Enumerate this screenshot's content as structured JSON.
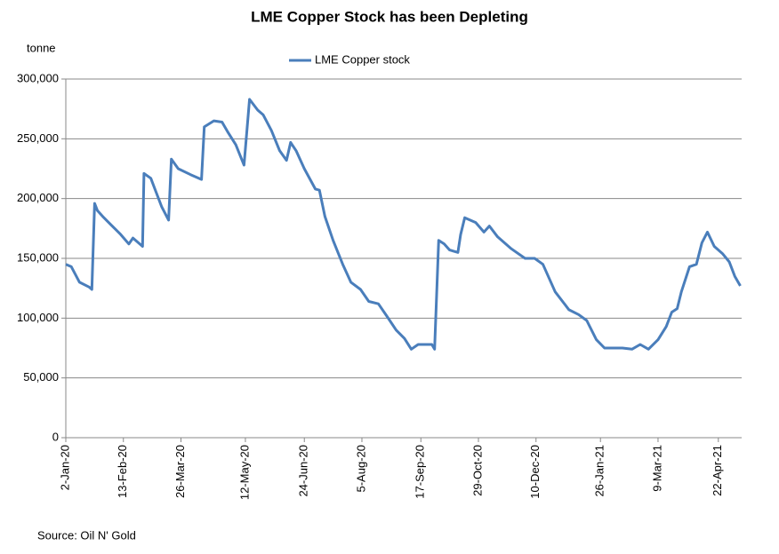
{
  "chart_data": {
    "type": "line",
    "title": "LME Copper Stock has been Depleting",
    "y_label": "tonne",
    "source": "Source: Oil N' Gold",
    "legend": "top",
    "grid": true,
    "x": [
      "2020-01-02",
      "2020-01-06",
      "2020-01-12",
      "2020-01-19",
      "2020-01-21",
      "2020-01-23",
      "2020-01-25",
      "2020-01-29",
      "2020-02-04",
      "2020-02-11",
      "2020-02-17",
      "2020-02-20",
      "2020-02-27",
      "2020-02-28",
      "2020-03-04",
      "2020-03-08",
      "2020-03-12",
      "2020-03-17",
      "2020-03-19",
      "2020-03-24",
      "2020-04-02",
      "2020-04-10",
      "2020-04-12",
      "2020-04-19",
      "2020-04-25",
      "2020-04-29",
      "2020-05-05",
      "2020-05-11",
      "2020-05-15",
      "2020-05-21",
      "2020-05-25",
      "2020-05-31",
      "2020-06-06",
      "2020-06-11",
      "2020-06-14",
      "2020-06-18",
      "2020-06-24",
      "2020-07-02",
      "2020-07-05",
      "2020-07-09",
      "2020-07-15",
      "2020-07-22",
      "2020-07-28",
      "2020-08-04",
      "2020-08-10",
      "2020-08-17",
      "2020-08-23",
      "2020-08-30",
      "2020-09-05",
      "2020-09-10",
      "2020-09-15",
      "2020-09-25",
      "2020-09-27",
      "2020-09-30",
      "2020-10-04",
      "2020-10-08",
      "2020-10-14",
      "2020-10-16",
      "2020-10-19",
      "2020-10-27",
      "2020-11-02",
      "2020-11-06",
      "2020-11-12",
      "2020-11-22",
      "2020-12-02",
      "2020-12-09",
      "2020-12-15",
      "2020-12-24",
      "2021-01-03",
      "2021-01-10",
      "2021-01-16",
      "2021-01-23",
      "2021-01-29",
      "2021-02-11",
      "2021-02-18",
      "2021-02-24",
      "2021-03-02",
      "2021-03-09",
      "2021-03-15",
      "2021-03-19",
      "2021-03-23",
      "2021-03-26",
      "2021-04-01",
      "2021-04-06",
      "2021-04-10",
      "2021-04-14",
      "2021-04-19",
      "2021-04-25",
      "2021-04-30",
      "2021-05-04",
      "2021-05-08"
    ],
    "series": [
      {
        "name": "LME Copper stock",
        "color": "#4a7ebb",
        "values": [
          145000,
          143000,
          130000,
          126000,
          124000,
          196000,
          190000,
          185000,
          178000,
          170000,
          162000,
          167000,
          160000,
          221000,
          217000,
          205000,
          193000,
          182000,
          233000,
          225000,
          220000,
          216000,
          260000,
          265000,
          264000,
          256000,
          245000,
          228000,
          283000,
          274000,
          270000,
          257000,
          240000,
          232000,
          247000,
          240000,
          225000,
          208000,
          207000,
          185000,
          165000,
          145000,
          130000,
          124000,
          114000,
          112000,
          102000,
          90000,
          83000,
          74000,
          78000,
          78000,
          74000,
          165000,
          162000,
          157000,
          155000,
          170000,
          184000,
          180000,
          172000,
          177000,
          168000,
          158000,
          150000,
          150000,
          145000,
          122000,
          107000,
          103000,
          98000,
          82000,
          75000,
          75000,
          74000,
          78000,
          74000,
          82000,
          93000,
          105000,
          108000,
          122000,
          143000,
          145000,
          163000,
          172000,
          160000,
          154000,
          147000,
          135000,
          127000
        ]
      }
    ],
    "xlim": [
      "2020-01-02",
      "2021-05-09"
    ],
    "xticks": [
      {
        "value": "2020-01-02",
        "label": "2-Jan-20"
      },
      {
        "value": "2020-02-13",
        "label": "13-Feb-20"
      },
      {
        "value": "2020-03-26",
        "label": "26-Mar-20"
      },
      {
        "value": "2020-05-12",
        "label": "12-May-20"
      },
      {
        "value": "2020-06-24",
        "label": "24-Jun-20"
      },
      {
        "value": "2020-08-05",
        "label": "5-Aug-20"
      },
      {
        "value": "2020-09-17",
        "label": "17-Sep-20"
      },
      {
        "value": "2020-10-29",
        "label": "29-Oct-20"
      },
      {
        "value": "2020-12-10",
        "label": "10-Dec-20"
      },
      {
        "value": "2021-01-26",
        "label": "26-Jan-21"
      },
      {
        "value": "2021-03-09",
        "label": "9-Mar-21"
      },
      {
        "value": "2021-04-22",
        "label": "22-Apr-21"
      }
    ],
    "ylim": [
      0,
      300000
    ],
    "yticks": [
      0,
      {
        "value": 50000,
        "label": "50,000"
      },
      {
        "value": 100000,
        "label": "100,000"
      },
      {
        "value": 150000,
        "label": "150,000"
      },
      {
        "value": 200000,
        "label": "200,000"
      },
      {
        "value": 250000,
        "label": "250,000"
      },
      {
        "value": 300000,
        "label": "300,000"
      }
    ]
  }
}
